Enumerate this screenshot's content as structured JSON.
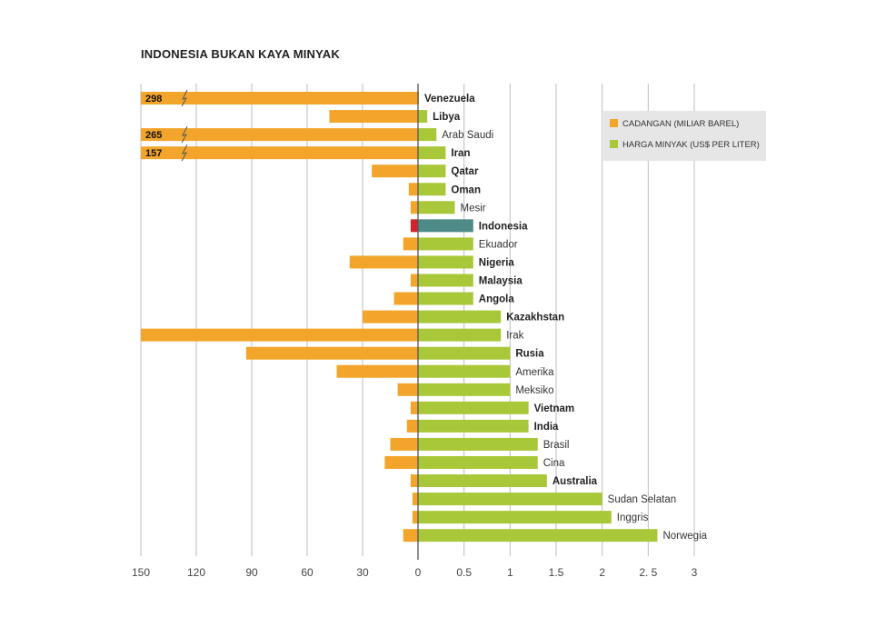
{
  "title": "INDONESIA BUKAN KAYA MINYAK",
  "colors": {
    "reserves": "#f2a52a",
    "price": "#a8c83a",
    "highlight_reserves": "#d2232a",
    "highlight_price": "#4e8a87",
    "grid": "#bdbdbd",
    "axis": "#555555"
  },
  "legend": {
    "reserves_label": "CADANGAN (MILIAR BAREL)",
    "price_label": "HARGA MINYAK (US$ PER LITER)"
  },
  "chart_data": {
    "type": "bar",
    "orientation": "horizontal-diverging",
    "categories": [
      "Venezuela",
      "Libya",
      "Arab Saudi",
      "Iran",
      "Qatar",
      "Oman",
      "Mesir",
      "Indonesia",
      "Ekuador",
      "Nigeria",
      "Malaysia",
      "Angola",
      "Kazakhstan",
      "Irak",
      "Rusia",
      "Amerika",
      "Meksiko",
      "Vietnam",
      "India",
      "Brasil",
      "Cina",
      "Australia",
      "Sudan Selatan",
      "Inggris",
      "Norwegia"
    ],
    "bold_categories": [
      "Venezuela",
      "Libya",
      "Iran",
      "Qatar",
      "Oman",
      "Indonesia",
      "Nigeria",
      "Malaysia",
      "Angola",
      "Kazakhstan",
      "Rusia",
      "Vietnam",
      "India",
      "Australia"
    ],
    "highlight": "Indonesia",
    "series": [
      {
        "name": "CADANGAN (MILIAR BAREL)",
        "side": "left",
        "values": [
          298,
          48,
          265,
          157,
          25,
          5,
          4,
          4,
          8,
          37,
          4,
          13,
          30,
          150,
          93,
          44,
          11,
          4,
          6,
          15,
          18,
          4,
          3,
          3,
          8
        ],
        "value_labels": {
          "Venezuela": "298",
          "Arab Saudi": "265",
          "Iran": "157"
        },
        "truncated": [
          "Venezuela",
          "Arab Saudi",
          "Iran"
        ]
      },
      {
        "name": "HARGA MINYAK (US$ PER LITER)",
        "side": "right",
        "values": [
          0.01,
          0.1,
          0.2,
          0.3,
          0.3,
          0.3,
          0.4,
          0.6,
          0.6,
          0.6,
          0.6,
          0.6,
          0.9,
          0.9,
          1.0,
          1.0,
          1.0,
          1.2,
          1.2,
          1.3,
          1.3,
          1.4,
          2.0,
          2.1,
          2.6
        ]
      }
    ],
    "left_axis": {
      "ticks": [
        "150",
        "120",
        "90",
        "60",
        "30",
        "0"
      ],
      "tick_values": [
        150,
        120,
        90,
        60,
        30,
        0
      ],
      "range": [
        0,
        150
      ],
      "reversed": true
    },
    "right_axis": {
      "ticks": [
        "0.5",
        "1",
        "1.5",
        "2",
        "2. 5",
        "3"
      ],
      "tick_values": [
        0.5,
        1,
        1.5,
        2,
        2.5,
        3
      ],
      "range": [
        0,
        3
      ]
    },
    "grid": true,
    "legend_position": "top-right"
  }
}
